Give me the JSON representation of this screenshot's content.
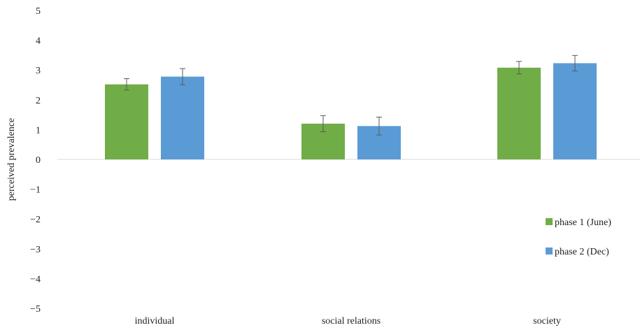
{
  "chart_data": {
    "type": "bar",
    "categories": [
      "individual",
      "social relations",
      "society"
    ],
    "series": [
      {
        "name": "phase 1 (June)",
        "color": "#70ad47",
        "values": [
          2.52,
          1.2,
          3.08
        ],
        "errors": [
          0.19,
          0.27,
          0.21
        ]
      },
      {
        "name": "phase 2 (Dec)",
        "color": "#5b9bd5",
        "values": [
          2.78,
          1.12,
          3.23
        ],
        "errors": [
          0.27,
          0.3,
          0.26
        ]
      }
    ],
    "ylabel": "perceived prevalence",
    "ylim": [
      -5,
      5
    ],
    "yticks": [
      "5",
      "4",
      "3",
      "2",
      "1",
      "0",
      "−1",
      "−2",
      "−3",
      "−4",
      "−5"
    ],
    "ytick_values": [
      5,
      4,
      3,
      2,
      1,
      0,
      -1,
      -2,
      -3,
      -4,
      -5
    ],
    "legend_position": "right",
    "grid": false
  }
}
